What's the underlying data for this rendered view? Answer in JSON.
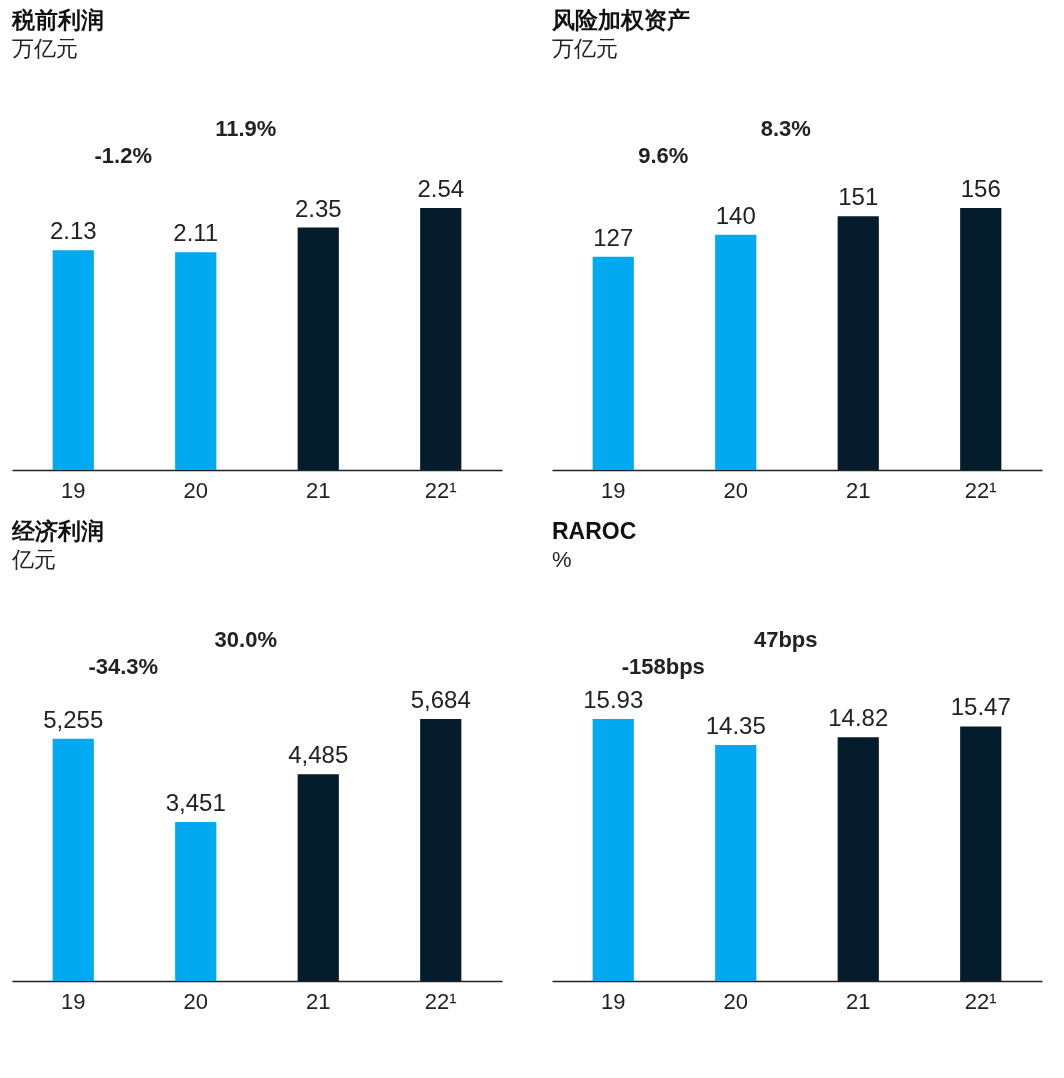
{
  "chart_data": [
    {
      "type": "bar",
      "title": "税前利润",
      "subtitle": "万亿元",
      "categories": [
        "19",
        "20",
        "21",
        "22¹"
      ],
      "values": [
        2.13,
        2.11,
        2.35,
        2.54
      ],
      "colors": [
        "#00a9f0",
        "#00a9f0",
        "#051c2c",
        "#051c2c"
      ],
      "data_labels": true,
      "annotations": [
        "-1.2%",
        "11.9%"
      ]
    },
    {
      "type": "bar",
      "title": "风险加权资产",
      "subtitle": "万亿元",
      "categories": [
        "19",
        "20",
        "21",
        "22¹"
      ],
      "values": [
        127,
        140,
        151,
        156
      ],
      "colors": [
        "#00a9f0",
        "#00a9f0",
        "#051c2c",
        "#051c2c"
      ],
      "data_labels": true,
      "annotations": [
        "9.6%",
        "8.3%"
      ]
    },
    {
      "type": "bar",
      "title": "经济利润",
      "subtitle": "亿元",
      "categories": [
        "19",
        "20",
        "21",
        "22¹"
      ],
      "values": [
        5255,
        3451,
        4485,
        5684
      ],
      "value_labels": [
        "5,255",
        "3,451",
        "4,485",
        "5,684"
      ],
      "colors": [
        "#00a9f0",
        "#00a9f0",
        "#051c2c",
        "#051c2c"
      ],
      "annotations": [
        "-34.3%",
        "30.0%"
      ]
    },
    {
      "type": "bar",
      "title": "RAROC",
      "subtitle": "%",
      "categories": [
        "19",
        "20",
        "21",
        "22¹"
      ],
      "values": [
        15.93,
        14.35,
        14.82,
        15.47
      ],
      "colors": [
        "#00a9f0",
        "#00a9f0",
        "#051c2c",
        "#051c2c"
      ],
      "data_labels": true,
      "annotations": [
        "-158bps",
        "47bps"
      ]
    }
  ]
}
